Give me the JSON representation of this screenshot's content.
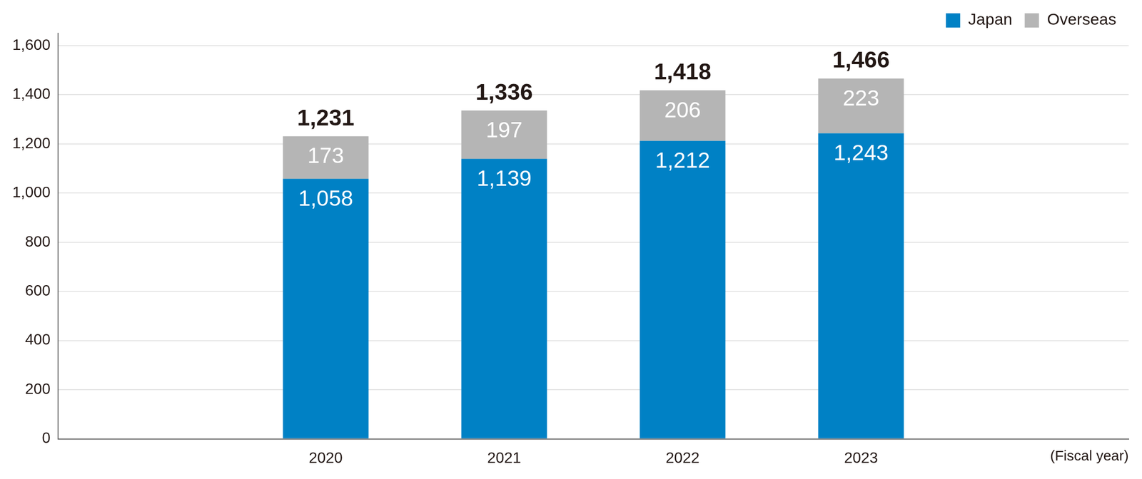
{
  "chart_data": {
    "type": "bar",
    "x_label": "(Fiscal year)",
    "categories": [
      null,
      "2020",
      "2021",
      "2022",
      "2023",
      null
    ],
    "series": [
      {
        "name": "Japan",
        "color": "#0081c5",
        "values": [
          null,
          1058,
          1139,
          1212,
          1243,
          null
        ],
        "value_labels": [
          null,
          "1,058",
          "1,139",
          "1,212",
          "1,243",
          null
        ]
      },
      {
        "name": "Overseas",
        "color": "#b5b5b5",
        "values": [
          null,
          173,
          197,
          206,
          223,
          null
        ],
        "value_labels": [
          null,
          "173",
          "197",
          "206",
          "223",
          null
        ]
      }
    ],
    "total_labels": [
      null,
      "1,231",
      "1,336",
      "1,418",
      "1,466",
      null
    ],
    "stacked": true,
    "data_labels": true,
    "legend": "upper right",
    "grid": true,
    "ylim": [
      0,
      1650
    ],
    "yticks": [
      0,
      200,
      400,
      600,
      800,
      {
        "value": 1000,
        "label": "1,000"
      },
      {
        "value": 1200,
        "label": "1,200"
      },
      {
        "value": 1400,
        "label": "1,400"
      },
      {
        "value": 1600,
        "label": "1,600"
      }
    ]
  }
}
